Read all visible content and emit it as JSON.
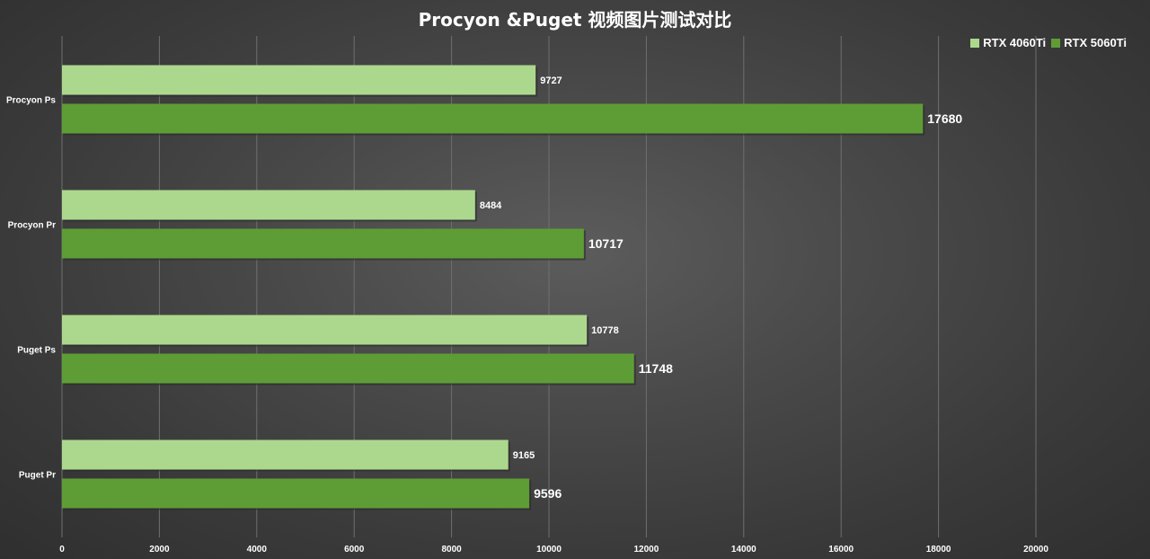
{
  "chart_data": {
    "type": "bar",
    "orientation": "horizontal",
    "title": "Procyon &Puget 视频图片测试对比",
    "xlabel": "",
    "ylabel": "",
    "categories": [
      "Procyon Ps",
      "Procyon Pr",
      "Puget Ps",
      "Puget Pr"
    ],
    "series": [
      {
        "name": "RTX 4060Ti",
        "color": "#acd88e",
        "values": [
          9727,
          8484,
          10778,
          9165
        ]
      },
      {
        "name": "RTX 5060Ti",
        "color": "#5e9d35",
        "values": [
          17680,
          10717,
          11748,
          9596
        ]
      }
    ],
    "xlim": [
      0,
      20000
    ],
    "xticks": [
      0,
      2000,
      4000,
      6000,
      8000,
      10000,
      12000,
      14000,
      16000,
      18000,
      20000
    ],
    "grid": true,
    "legend_position": "top-right"
  }
}
